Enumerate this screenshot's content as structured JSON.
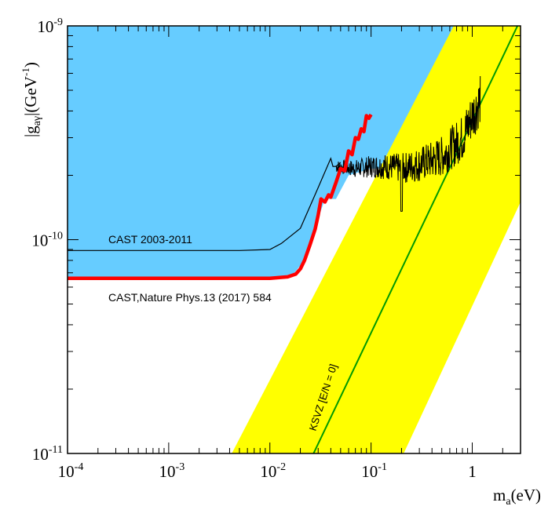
{
  "chart_data": {
    "type": "area",
    "title": "",
    "xscale": "log",
    "yscale": "log",
    "xlim": [
      0.0001,
      3.0
    ],
    "ylim": [
      1e-11,
      1e-09
    ],
    "xlabel": {
      "main": "m",
      "sub": "a",
      "unit": "(eV)"
    },
    "ylabel": {
      "prefix": "|g",
      "sub": "aγ",
      "mid": "|(GeV",
      "sup": "-1",
      "suffix": ")"
    },
    "xticks": [
      {
        "value": 0.0001,
        "base": "10",
        "exp": "-4"
      },
      {
        "value": 0.001,
        "base": "10",
        "exp": "-3"
      },
      {
        "value": 0.01,
        "base": "10",
        "exp": "-2"
      },
      {
        "value": 0.1,
        "base": "10",
        "exp": "-1"
      },
      {
        "value": 1,
        "base": "1",
        "exp": ""
      }
    ],
    "yticks": [
      {
        "value": 1e-11,
        "base": "10",
        "exp": "-11"
      },
      {
        "value": 1e-10,
        "base": "10",
        "exp": "-10"
      },
      {
        "value": 1e-09,
        "base": "10",
        "exp": "-9"
      }
    ],
    "colors": {
      "excluded_region": "#66ccff",
      "qcd_band": "#ffff00",
      "ksvz_line": "#009900",
      "cast_2017": "#ff0000",
      "cast_2011": "#000000",
      "axes": "#000000"
    },
    "series": [
      {
        "name": "Excluded region (blue)",
        "kind": "region",
        "x": [
          0.0001,
          0.01,
          0.017,
          0.022,
          0.03,
          0.035,
          0.045,
          0.06,
          0.1,
          0.2,
          0.5,
          1.0,
          1.2,
          1.2,
          0.0001
        ],
        "y": [
          6.6e-11,
          6.6e-11,
          6.9e-11,
          8e-11,
          1.25e-10,
          1.55e-10,
          1.55e-10,
          2e-10,
          2.15e-10,
          2.15e-10,
          2.25e-10,
          3.5e-10,
          4.5e-10,
          1e-09,
          1e-09
        ]
      },
      {
        "name": "QCD axion band (yellow)",
        "kind": "band",
        "left_edge": {
          "x": [
            0.0042,
            3.0
          ],
          "y": [
            1e-11,
            4e-09
          ]
        },
        "right_edge": {
          "x": [
            0.21,
            3.0
          ],
          "y": [
            1e-11,
            1.5e-10
          ]
        }
      },
      {
        "name": "KSVZ [E/N = 0]",
        "kind": "line",
        "x": [
          0.027,
          2.8
        ],
        "y": [
          1e-11,
          1e-09
        ]
      },
      {
        "name": "CAST 2003-2011",
        "kind": "line",
        "x": [
          0.0001,
          0.005,
          0.01,
          0.013,
          0.02,
          0.03,
          0.04,
          0.042,
          0.045,
          0.05
        ],
        "y": [
          8.9e-11,
          8.9e-11,
          9e-11,
          9.6e-11,
          1.13e-10,
          1.75e-10,
          2.4e-10,
          2.2e-10,
          2.2e-10,
          2.3e-10
        ]
      },
      {
        "name": "CAST 2003-2011 high mass (noisy)",
        "kind": "noisy",
        "x": [
          0.045,
          0.07,
          0.1,
          0.15,
          0.2,
          0.3,
          0.5,
          0.8,
          1.0,
          1.2
        ],
        "y": [
          2.2e-10,
          2.15e-10,
          2.2e-10,
          2.2e-10,
          2.15e-10,
          2.25e-10,
          2.45e-10,
          3e-10,
          3.8e-10,
          4.5e-10
        ]
      },
      {
        "name": "CAST, Nature Phys. 13 (2017) 584",
        "kind": "line",
        "x": [
          0.0001,
          0.01,
          0.015,
          0.018,
          0.02,
          0.022,
          0.025,
          0.028,
          0.03,
          0.032,
          0.035,
          0.038,
          0.04,
          0.045,
          0.05,
          0.055,
          0.06,
          0.065,
          0.07,
          0.075,
          0.08,
          0.085,
          0.09,
          0.095,
          0.1
        ],
        "y": [
          6.6e-11,
          6.6e-11,
          6.7e-11,
          6.9e-11,
          7.3e-11,
          8e-11,
          9.5e-11,
          1.12e-10,
          1.3e-10,
          1.55e-10,
          1.5e-10,
          1.62e-10,
          1.58e-10,
          1.85e-10,
          2.15e-10,
          2.1e-10,
          2.6e-10,
          2.5e-10,
          3e-10,
          2.95e-10,
          3.3e-10,
          3.2e-10,
          3.8e-10,
          3.7e-10,
          3.85e-10
        ]
      }
    ],
    "annotations": {
      "cast_2011": "CAST 2003-2011",
      "cast_2017": "CAST,Nature Phys.13 (2017) 584",
      "ksvz": "KSVZ [E/N = 0]"
    }
  }
}
